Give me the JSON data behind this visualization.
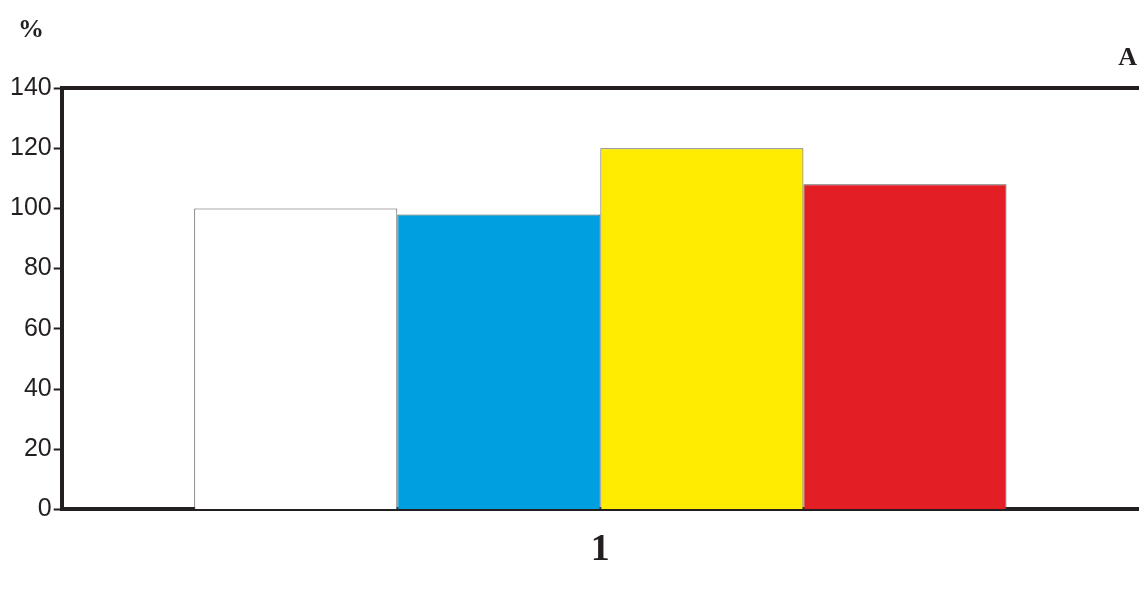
{
  "chart_data": {
    "type": "bar",
    "ylabel": "%",
    "annotations": [
      "A"
    ],
    "categories": [
      "1"
    ],
    "series": [
      {
        "color": "#ffffff",
        "values": [
          100
        ]
      },
      {
        "color": "#00a0e0",
        "values": [
          98
        ]
      },
      {
        "color": "#ffec00",
        "values": [
          120
        ]
      },
      {
        "color": "#e31e24",
        "values": [
          108
        ]
      }
    ],
    "ylim": [
      0,
      140
    ],
    "yticks": [
      0,
      20,
      40,
      60,
      80,
      100,
      120,
      140
    ],
    "grid": false,
    "legend": false
  }
}
